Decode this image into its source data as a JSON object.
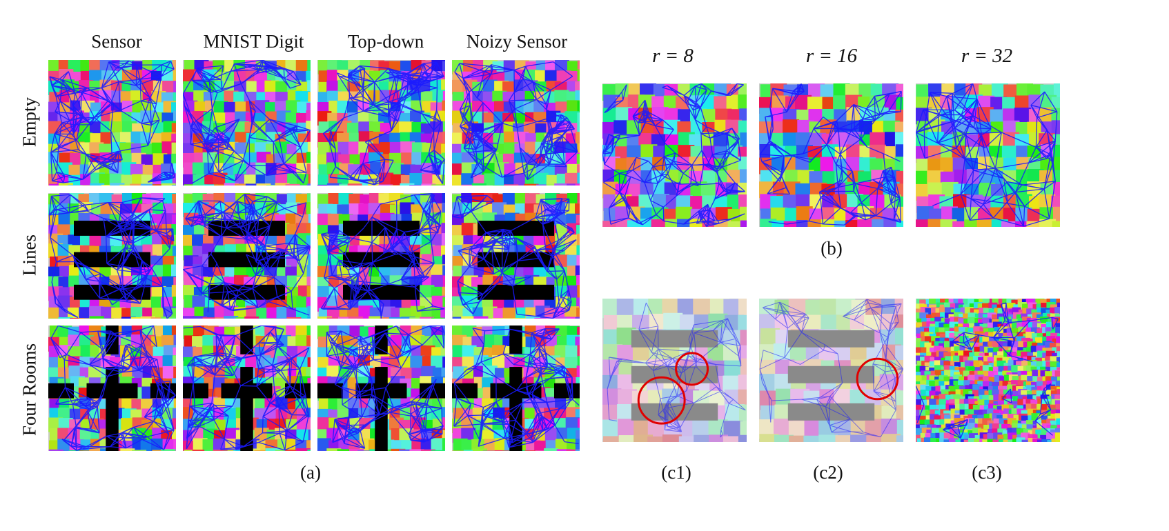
{
  "part_a": {
    "columns": [
      "Sensor",
      "MNIST Digit",
      "Top-down",
      "Noizy Sensor"
    ],
    "rows": [
      "Empty",
      "Lines",
      "Four Rooms"
    ],
    "caption": "(a)"
  },
  "part_b": {
    "r_labels": [
      "r = 8",
      "r = 16",
      "r = 32"
    ],
    "caption": "(b)"
  },
  "part_c": {
    "captions": [
      "(c1)",
      "(c2)",
      "(c3)"
    ]
  },
  "colors": {
    "graph_edges": "#1a1aff",
    "highlight_circle": "#e00000",
    "obstacle": "#000000",
    "faded_obstacle": "#8a8a8a"
  }
}
